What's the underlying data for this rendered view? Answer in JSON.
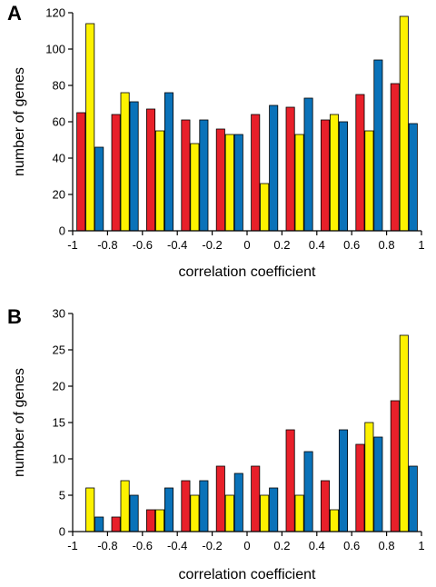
{
  "colors": {
    "series1": "#e8202a",
    "series2": "#fdf200",
    "series3": "#0a72b9"
  },
  "chart_data": [
    {
      "panel_label": "A",
      "type": "bar",
      "xlabel": "correlation coefficient",
      "ylabel": "number of genes",
      "xlim": [
        -1,
        1
      ],
      "ylim": [
        0,
        120
      ],
      "x_ticks": [
        "-1",
        "-0.8",
        "-0.6",
        "-0.4",
        "-0.2",
        "0",
        "0.2",
        "0.4",
        "0.6",
        "0.8",
        "1"
      ],
      "y_ticks": [
        "0",
        "20",
        "40",
        "60",
        "80",
        "100",
        "120"
      ],
      "bin_starts": [
        -1,
        -0.8,
        -0.6,
        -0.4,
        -0.2,
        0,
        0.2,
        0.4,
        0.6,
        0.8
      ],
      "bin_width": 0.2,
      "series": [
        {
          "values": [
            65,
            64,
            67,
            61,
            56,
            64,
            68,
            61,
            75,
            81
          ]
        },
        {
          "values": [
            114,
            76,
            55,
            48,
            53,
            26,
            53,
            64,
            55,
            118
          ]
        },
        {
          "values": [
            46,
            71,
            76,
            61,
            53,
            69,
            73,
            60,
            94,
            59
          ]
        }
      ]
    },
    {
      "panel_label": "B",
      "type": "bar",
      "xlabel": "correlation coefficient",
      "ylabel": "number of genes",
      "xlim": [
        -1,
        1
      ],
      "ylim": [
        0,
        30
      ],
      "x_ticks": [
        "-1",
        "-0.8",
        "-0.6",
        "-0.4",
        "-0.2",
        "0",
        "0.2",
        "0.4",
        "0.6",
        "0.8",
        "1"
      ],
      "y_ticks": [
        "0",
        "5",
        "10",
        "15",
        "20",
        "25",
        "30"
      ],
      "bin_starts": [
        -1,
        -0.8,
        -0.6,
        -0.4,
        -0.2,
        0,
        0.2,
        0.4,
        0.6,
        0.8
      ],
      "bin_width": 0.2,
      "series": [
        {
          "values": [
            0,
            2,
            3,
            7,
            9,
            9,
            14,
            7,
            12,
            18
          ]
        },
        {
          "values": [
            6,
            7,
            3,
            5,
            5,
            5,
            5,
            3,
            15,
            27
          ]
        },
        {
          "values": [
            2,
            5,
            6,
            7,
            8,
            6,
            11,
            14,
            13,
            9
          ]
        }
      ]
    }
  ]
}
